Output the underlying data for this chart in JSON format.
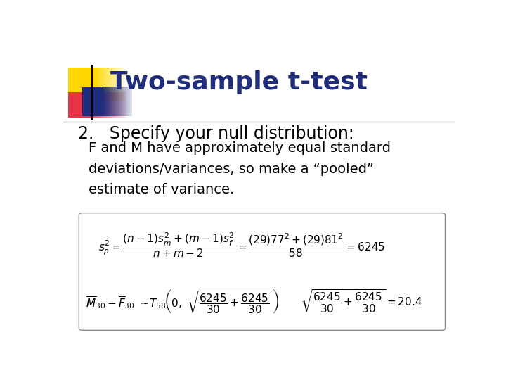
{
  "background_color": "#ffffff",
  "title": "Two-sample t-test",
  "title_color": "#1F2D7B",
  "title_fontsize": 26,
  "subtitle": "2.   Specify your null distribution:",
  "subtitle_fontsize": 17,
  "subtitle_color": "#000000",
  "body_text": "F and M have approximately equal standard\ndeviations/variances, so make a “pooled”\nestimate of variance.",
  "body_fontsize": 14,
  "body_color": "#000000",
  "separator_line_color": "#999999",
  "formula_fontsize": 11
}
